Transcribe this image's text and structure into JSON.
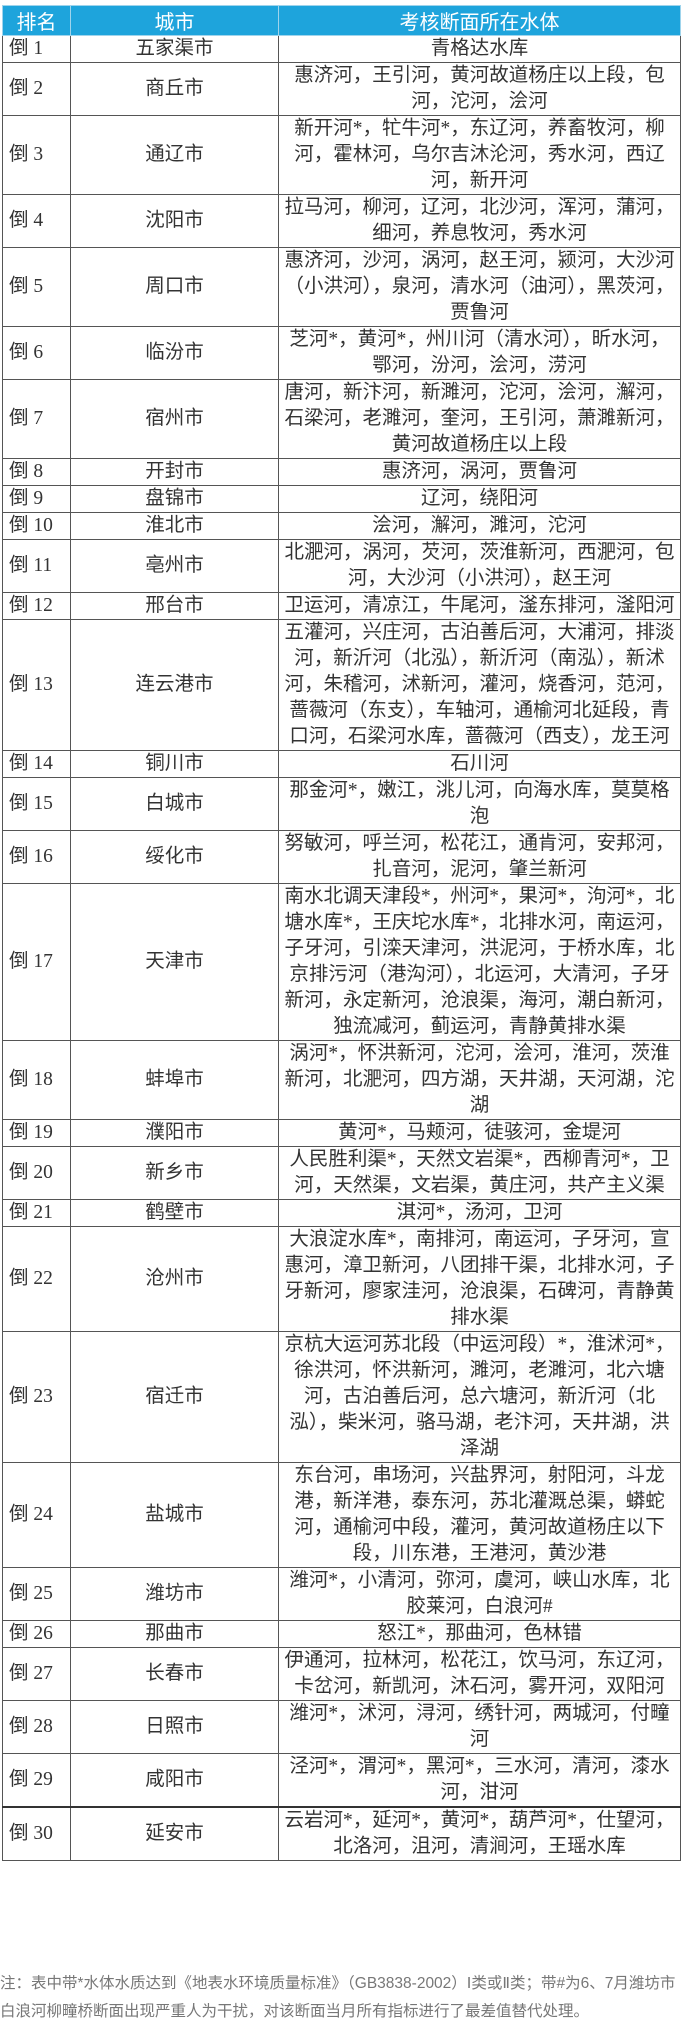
{
  "colors": {
    "header_bg": "#1ea4dc",
    "header_text": "#ffffff",
    "border": "#555555",
    "note_text": "#777777"
  },
  "table": {
    "headers": [
      "排名",
      "城市",
      "考核断面所在水体"
    ],
    "rows": [
      {
        "rank": "倒 1",
        "city": "五家渠市",
        "water": "青格达水库"
      },
      {
        "rank": "倒 2",
        "city": "商丘市",
        "water": "惠济河，王引河，黄河故道杨庄以上段，包河，沱河，浍河"
      },
      {
        "rank": "倒 3",
        "city": "通辽市",
        "water": "新开河*，牤牛河*，东辽河，养畜牧河，柳河，霍林河，乌尔吉沐沦河，秀水河，西辽河，新开河"
      },
      {
        "rank": "倒 4",
        "city": "沈阳市",
        "water": "拉马河，柳河，辽河，北沙河，浑河，蒲河，细河，养息牧河，秀水河"
      },
      {
        "rank": "倒 5",
        "city": "周口市",
        "water": "惠济河，沙河，涡河，赵王河，颍河，大沙河（小洪河），泉河，清水河（油河），黑茨河，贾鲁河"
      },
      {
        "rank": "倒 6",
        "city": "临汾市",
        "water": "芝河*，黄河*，州川河（清水河），昕水河，鄂河，汾河，浍河，涝河"
      },
      {
        "rank": "倒 7",
        "city": "宿州市",
        "water": "唐河，新汴河，新濉河，沱河，浍河，澥河，石梁河，老濉河，奎河，王引河，萧濉新河，黄河故道杨庄以上段"
      },
      {
        "rank": "倒 8",
        "city": "开封市",
        "water": "惠济河，涡河，贾鲁河"
      },
      {
        "rank": "倒 9",
        "city": "盘锦市",
        "water": "辽河，绕阳河"
      },
      {
        "rank": "倒 10",
        "city": "淮北市",
        "water": "浍河，澥河，濉河，沱河"
      },
      {
        "rank": "倒 11",
        "city": "亳州市",
        "water": "北淝河，涡河，芡河，茨淮新河，西淝河，包河，大沙河（小洪河），赵王河"
      },
      {
        "rank": "倒 12",
        "city": "邢台市",
        "water": "卫运河，清凉江，牛尾河，滏东排河，滏阳河"
      },
      {
        "rank": "倒 13",
        "city": "连云港市",
        "water": "五灌河，兴庄河，古泊善后河，大浦河，排淡河，新沂河（北泓），新沂河（南泓），新沭河，朱稽河，沭新河，灌河，烧香河，范河，蔷薇河（东支），车轴河，通榆河北延段，青口河，石梁河水库，蔷薇河（西支），龙王河"
      },
      {
        "rank": "倒 14",
        "city": "铜川市",
        "water": "石川河"
      },
      {
        "rank": "倒 15",
        "city": "白城市",
        "water": "那金河*，嫩江，洮儿河，向海水库，莫莫格泡"
      },
      {
        "rank": "倒 16",
        "city": "绥化市",
        "water": "努敏河，呼兰河，松花江，通肯河，安邦河，扎音河，泥河，肇兰新河"
      },
      {
        "rank": "倒 17",
        "city": "天津市",
        "water": "南水北调天津段*，州河*，果河*，泃河*，北塘水库*，王庆坨水库*，北排水河，南运河，子牙河，引滦天津河，洪泥河，于桥水库，北京排污河（港沟河），北运河，大清河，子牙新河，永定新河，沧浪渠，海河，潮白新河，独流减河，蓟运河，青静黄排水渠"
      },
      {
        "rank": "倒 18",
        "city": "蚌埠市",
        "water": "涡河*，怀洪新河，沱河，浍河，淮河，茨淮新河，北淝河，四方湖，天井湖，天河湖，沱湖"
      },
      {
        "rank": "倒 19",
        "city": "濮阳市",
        "water": "黄河*，马颊河，徒骇河，金堤河"
      },
      {
        "rank": "倒 20",
        "city": "新乡市",
        "water": "人民胜利渠*，天然文岩渠*，西柳青河*，卫河，天然渠，文岩渠，黄庄河，共产主义渠"
      },
      {
        "rank": "倒 21",
        "city": "鹤壁市",
        "water": "淇河*，汤河，卫河"
      },
      {
        "rank": "倒 22",
        "city": "沧州市",
        "water": "大浪淀水库*，南排河，南运河，子牙河，宣惠河，漳卫新河，八团排干渠，北排水河，子牙新河，廖家洼河，沧浪渠，石碑河，青静黄排水渠"
      },
      {
        "rank": "倒 23",
        "city": "宿迁市",
        "water": "京杭大运河苏北段（中运河段）*，淮沭河*，徐洪河，怀洪新河，濉河，老濉河，北六塘河，古泊善后河，总六塘河，新沂河（北泓），柴米河，骆马湖，老汴河，天井湖，洪泽湖"
      },
      {
        "rank": "倒 24",
        "city": "盐城市",
        "water": "东台河，串场河，兴盐界河，射阳河，斗龙港，新洋港，泰东河，苏北灌溉总渠，蟒蛇河，通榆河中段，灌河，黄河故道杨庄以下段，川东港，王港河，黄沙港"
      },
      {
        "rank": "倒 25",
        "city": "潍坊市",
        "water": "潍河*，小清河，弥河，虞河，峡山水库，北胶莱河，白浪河#"
      },
      {
        "rank": "倒 26",
        "city": "那曲市",
        "water": "怒江*，那曲河，色林错"
      },
      {
        "rank": "倒 27",
        "city": "长春市",
        "water": "伊通河，拉林河，松花江，饮马河，东辽河，卡岔河，新凯河，沐石河，雾开河，双阳河"
      },
      {
        "rank": "倒 28",
        "city": "日照市",
        "water": "潍河*，沭河，浔河，绣针河，两城河，付疃河"
      },
      {
        "rank": "倒 29",
        "city": "咸阳市",
        "water": "泾河*，渭河*，黑河*，三水河，清河，漆水河，泔河"
      },
      {
        "rank": "倒 30",
        "city": "延安市",
        "water": "云岩河*，延河*，黄河*，葫芦河*，仕望河，北洛河，沮河，清涧河，王瑶水库"
      }
    ]
  },
  "note": "注：表中带*水体水质达到《地表水环境质量标准》（GB3838-2002）Ⅰ类或Ⅱ类；带#为6、7月潍坊市白浪河柳疃桥断面出现严重人为干扰，对该断面当月所有指标进行了最差值替代处理。"
}
